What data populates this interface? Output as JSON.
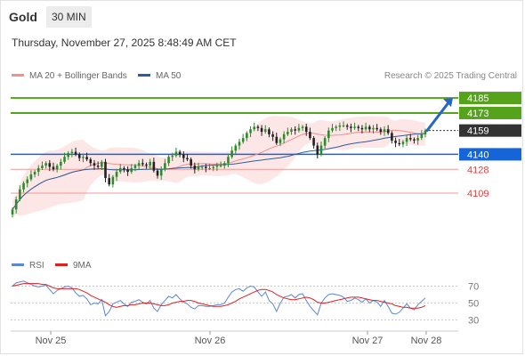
{
  "header": {
    "title": "Gold",
    "timeframe": "30 MIN"
  },
  "timestamp": "Thursday, November 27, 2025 8:48:49 AM CET",
  "legend": {
    "ma20": {
      "label": "MA 20 + Bollinger Bands",
      "color": "#f28f8f"
    },
    "ma50": {
      "label": "MA 50",
      "color": "#2f5d9b"
    },
    "rsi": {
      "label": "RSI",
      "color": "#5b86d6"
    },
    "rsi_ma": {
      "label": "9MA",
      "color": "#e02020"
    }
  },
  "credit": "Research © 2025 Trading Central",
  "chart_data": [
    {
      "type": "candlestick",
      "title": "Gold",
      "timeframe": "30 MIN",
      "x_labels": [
        "Nov 25",
        "Nov 26",
        "Nov 27",
        "Nov 28"
      ],
      "y_range": [
        4060,
        4195
      ],
      "closes": [
        4096,
        4104,
        4112,
        4117,
        4120,
        4124,
        4126,
        4129,
        4131,
        4133,
        4130,
        4128,
        4131,
        4134,
        4138,
        4141,
        4142,
        4140,
        4137,
        4138,
        4136,
        4133,
        4131,
        4130,
        4134,
        4121,
        4116,
        4122,
        4126,
        4129,
        4128,
        4126,
        4129,
        4131,
        4133,
        4132,
        4131,
        4134,
        4127,
        4123,
        4128,
        4133,
        4138,
        4139,
        4142,
        4140,
        4137,
        4136,
        4131,
        4128,
        4130,
        4130,
        4129,
        4129,
        4130,
        4131,
        4131,
        4133,
        4138,
        4143,
        4147,
        4150,
        4153,
        4157,
        4160,
        4162,
        4161,
        4158,
        4160,
        4156,
        4154,
        4149,
        4152,
        4156,
        4158,
        4160,
        4159,
        4161,
        4162,
        4158,
        4153,
        4147,
        4140,
        4147,
        4153,
        4159,
        4161,
        4162,
        4163,
        4163,
        4162,
        4161,
        4162,
        4161,
        4160,
        4162,
        4160,
        4161,
        4160,
        4158,
        4160,
        4157,
        4151,
        4149,
        4148,
        4150,
        4153,
        4152,
        4151,
        4153,
        4156,
        4159
      ],
      "ma20_end": 4158,
      "ma50_end": 4154,
      "levels": [
        {
          "value": 4185,
          "label": "4185",
          "kind": "resistance",
          "color": "#54a31a"
        },
        {
          "value": 4173,
          "label": "4173",
          "kind": "resistance",
          "color": "#54a31a"
        },
        {
          "value": 4159,
          "label": "4159",
          "kind": "last-price",
          "color": "#333333"
        },
        {
          "value": 4140,
          "label": "4140",
          "kind": "pivot",
          "color": "#1565d8"
        },
        {
          "value": 4128,
          "label": "4128",
          "kind": "support",
          "color": "#e04040"
        },
        {
          "value": 4109,
          "label": "4109",
          "kind": "support",
          "color": "#e04040"
        }
      ],
      "forecast_arrow": {
        "from": 4159,
        "to": 4185,
        "direction": "up"
      },
      "series": [
        {
          "name": "MA 20 + Bollinger Bands",
          "color": "#f28f8f"
        },
        {
          "name": "MA 50",
          "color": "#2f5d9b"
        }
      ]
    },
    {
      "type": "line",
      "title": "",
      "y_range": [
        20,
        80
      ],
      "y_ticks": [
        30,
        50,
        70
      ],
      "rsi": [
        70,
        74,
        75,
        76,
        74,
        72,
        70,
        69,
        70,
        71,
        66,
        61,
        65,
        67,
        69,
        70,
        68,
        62,
        58,
        59,
        55,
        48,
        50,
        49,
        54,
        35,
        40,
        49,
        51,
        53,
        49,
        46,
        51,
        52,
        54,
        51,
        49,
        53,
        44,
        40,
        48,
        53,
        58,
        56,
        60,
        55,
        51,
        49,
        45,
        43,
        47,
        47,
        46,
        46,
        47,
        48,
        48,
        50,
        57,
        63,
        66,
        67,
        64,
        68,
        70,
        69,
        63,
        58,
        63,
        53,
        49,
        40,
        50,
        57,
        58,
        60,
        56,
        60,
        61,
        53,
        46,
        41,
        36,
        50,
        56,
        60,
        61,
        60,
        59,
        57,
        52,
        53,
        56,
        54,
        51,
        55,
        50,
        53,
        51,
        46,
        53,
        46,
        38,
        37,
        39,
        44,
        49,
        44,
        42,
        48,
        52,
        56
      ],
      "rsi_ma": [
        70,
        71,
        72,
        73,
        73,
        73,
        73,
        73,
        72,
        72,
        70,
        68,
        67,
        67,
        67,
        67,
        67,
        67,
        66,
        64,
        62,
        59,
        57,
        55,
        53,
        51,
        48,
        46,
        45,
        46,
        47,
        47,
        48,
        48,
        49,
        50,
        50,
        50,
        49,
        48,
        47,
        47,
        48,
        50,
        51,
        52,
        52,
        53,
        53,
        52,
        50,
        49,
        48,
        47,
        46,
        46,
        46,
        47,
        48,
        50,
        52,
        55,
        57,
        59,
        61,
        63,
        65,
        66,
        66,
        65,
        63,
        60,
        58,
        56,
        55,
        54,
        54,
        55,
        56,
        57,
        56,
        54,
        51,
        50,
        50,
        51,
        52,
        53,
        54,
        55,
        56,
        57,
        57,
        57,
        56,
        55,
        54,
        53,
        53,
        52,
        51,
        50,
        49,
        47,
        46,
        45,
        45,
        44,
        44,
        44,
        45,
        47
      ]
    }
  ]
}
